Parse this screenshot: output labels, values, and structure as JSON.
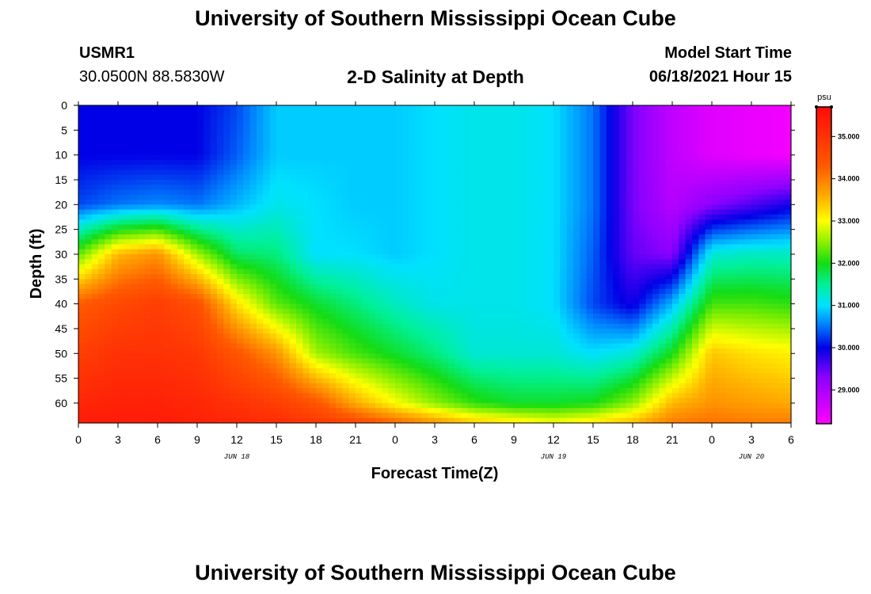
{
  "header": {
    "title": "University of Southern Mississippi Ocean Cube",
    "station_id": "USMR1",
    "station_coords": "30.0500N  88.5830W",
    "plot_title": "2-D Salinity at Depth",
    "model_label": "Model Start Time",
    "model_time": "06/18/2021 Hour 15"
  },
  "footer": {
    "title": "University of Southern Mississippi Ocean Cube"
  },
  "chart_data": {
    "type": "heatmap",
    "variable": "Salinity",
    "unit": "psu",
    "xlabel": "Forecast Time(Z)",
    "ylabel": "Depth (ft)",
    "x_hours": [
      0,
      3,
      6,
      9,
      12,
      15,
      18,
      21,
      24,
      27,
      30,
      33,
      36,
      39,
      42,
      45,
      48,
      51,
      54
    ],
    "x_tick_labels": [
      "0",
      "3",
      "6",
      "9",
      "12",
      "15",
      "18",
      "21",
      "0",
      "3",
      "6",
      "9",
      "12",
      "15",
      "18",
      "21",
      "0",
      "3",
      "6"
    ],
    "date_labels": [
      {
        "label": "JUN 18",
        "hour": 12
      },
      {
        "label": "JUN 19",
        "hour": 36
      },
      {
        "label": "JUN 20",
        "hour": 51
      }
    ],
    "y_ticks": [
      0,
      5,
      10,
      15,
      20,
      25,
      30,
      35,
      40,
      45,
      50,
      55,
      60
    ],
    "ylim": [
      0,
      64
    ],
    "xlim": [
      0,
      54
    ],
    "colorbar": {
      "min": 28.2,
      "max": 35.7,
      "ticks": [
        35,
        34,
        33,
        32,
        31,
        30,
        29
      ],
      "tick_labels": [
        "35.000",
        "34.000",
        "33.000",
        "32.000",
        "31.000",
        "30.000",
        "29.000"
      ],
      "unit_label": "psu"
    },
    "profile_depths": [
      0,
      10,
      20,
      30,
      40,
      50,
      60,
      64
    ],
    "profiles": [
      {
        "hour": 0,
        "salinity": [
          30.0,
          30.0,
          30.3,
          32.3,
          34.3,
          34.8,
          35.2,
          35.4
        ]
      },
      {
        "hour": 3,
        "salinity": [
          30.0,
          30.0,
          30.5,
          33.5,
          34.6,
          35.0,
          35.3,
          35.4
        ]
      },
      {
        "hour": 6,
        "salinity": [
          30.0,
          30.0,
          30.6,
          33.8,
          34.8,
          35.0,
          35.3,
          35.4
        ]
      },
      {
        "hour": 9,
        "salinity": [
          30.0,
          30.0,
          30.5,
          32.6,
          34.5,
          34.9,
          35.2,
          35.3
        ]
      },
      {
        "hour": 12,
        "salinity": [
          30.3,
          30.4,
          30.8,
          31.7,
          33.2,
          34.4,
          35.0,
          35.2
        ]
      },
      {
        "hour": 15,
        "salinity": [
          30.9,
          30.9,
          31.1,
          31.6,
          32.3,
          33.8,
          34.8,
          35.1
        ]
      },
      {
        "hour": 18,
        "salinity": [
          30.9,
          30.9,
          31.0,
          31.0,
          31.9,
          32.6,
          34.4,
          34.9
        ]
      },
      {
        "hour": 21,
        "salinity": [
          30.9,
          30.9,
          30.9,
          31.0,
          31.6,
          32.2,
          33.6,
          34.6
        ]
      },
      {
        "hour": 24,
        "salinity": [
          30.9,
          30.9,
          30.9,
          30.9,
          31.3,
          31.9,
          33.0,
          34.2
        ]
      },
      {
        "hour": 27,
        "salinity": [
          31.0,
          31.0,
          31.0,
          31.0,
          31.1,
          31.6,
          32.5,
          33.8
        ]
      },
      {
        "hour": 30,
        "salinity": [
          31.1,
          31.1,
          31.1,
          31.1,
          31.1,
          31.2,
          32.1,
          33.4
        ]
      },
      {
        "hour": 33,
        "salinity": [
          31.1,
          31.1,
          31.1,
          31.1,
          31.1,
          31.2,
          31.9,
          33.2
        ]
      },
      {
        "hour": 36,
        "salinity": [
          31.0,
          31.0,
          31.0,
          31.0,
          31.0,
          31.2,
          31.9,
          33.0
        ]
      },
      {
        "hour": 39,
        "salinity": [
          30.5,
          30.5,
          30.5,
          30.4,
          30.3,
          31.0,
          32.0,
          33.2
        ]
      },
      {
        "hour": 42,
        "salinity": [
          29.4,
          29.4,
          29.4,
          29.5,
          29.9,
          31.2,
          32.5,
          33.5
        ]
      },
      {
        "hour": 45,
        "salinity": [
          28.8,
          28.8,
          28.9,
          29.3,
          30.8,
          32.0,
          33.5,
          34.0
        ]
      },
      {
        "hour": 48,
        "salinity": [
          28.5,
          28.5,
          29.3,
          31.2,
          32.2,
          33.4,
          33.8,
          34.1
        ]
      },
      {
        "hour": 51,
        "salinity": [
          28.4,
          28.4,
          29.6,
          31.3,
          32.2,
          33.2,
          33.7,
          34.0
        ]
      },
      {
        "hour": 54,
        "salinity": [
          28.3,
          28.3,
          29.9,
          31.3,
          32.1,
          33.1,
          33.6,
          34.0
        ]
      }
    ]
  }
}
